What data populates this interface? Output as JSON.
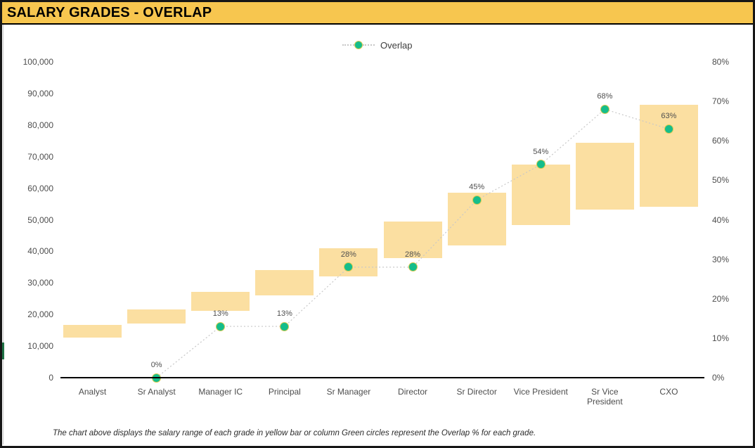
{
  "header": {
    "title": "SALARY GRADES - OVERLAP"
  },
  "legend": {
    "label": "Overlap"
  },
  "footnote": "The chart above displays the salary range of each grade in yellow bar or column Green circles represent the Overlap % for each grade.",
  "colors": {
    "header_bg": "#F7C64F",
    "bar_fill": "#FBDFA1",
    "overlap_dot": "#15BD8B",
    "dot_ring": "#D9C94F",
    "connector_line": "#c8c8c8",
    "axis_text": "#4d4d4d",
    "axis_line": "#000000",
    "accent_tab": "#1E7145"
  },
  "chart_data": {
    "type": "bar",
    "subtype": "floating-bar salary ranges with line-scatter overlap overlay",
    "title": "SALARY GRADES - OVERLAP",
    "categories": [
      "Analyst",
      "Sr Analyst",
      "Manager IC",
      "Principal",
      "Sr Manager",
      "Director",
      "Sr Director",
      "Vice President",
      "Sr Vice President",
      "CXO"
    ],
    "series": [
      {
        "name": "Salary Range",
        "type": "floating-bar",
        "axis": "left",
        "min": [
          12800,
          17100,
          21200,
          26000,
          32000,
          37900,
          41800,
          48300,
          53200,
          54100
        ],
        "max": [
          16600,
          21500,
          27100,
          34000,
          40900,
          49400,
          58600,
          67400,
          74300,
          86400
        ]
      },
      {
        "name": "Overlap",
        "type": "line-scatter",
        "axis": "right",
        "unit": "%",
        "values": [
          null,
          0,
          13,
          13,
          28,
          28,
          45,
          54,
          68,
          63
        ],
        "labels": [
          "",
          "0%",
          "13%",
          "13%",
          "28%",
          "28%",
          "45%",
          "54%",
          "68%",
          "63%"
        ]
      }
    ],
    "left_axis": {
      "min": 0,
      "max": 100000,
      "tick_step": 10000,
      "ticks": [
        "0",
        "10,000",
        "20,000",
        "30,000",
        "40,000",
        "50,000",
        "60,000",
        "70,000",
        "80,000",
        "90,000",
        "100,000"
      ]
    },
    "right_axis": {
      "min": 0,
      "max": 80,
      "tick_step": 10,
      "ticks": [
        "0%",
        "10%",
        "20%",
        "30%",
        "40%",
        "50%",
        "60%",
        "70%",
        "80%"
      ]
    },
    "grid": false,
    "legend_position": "top-center"
  }
}
